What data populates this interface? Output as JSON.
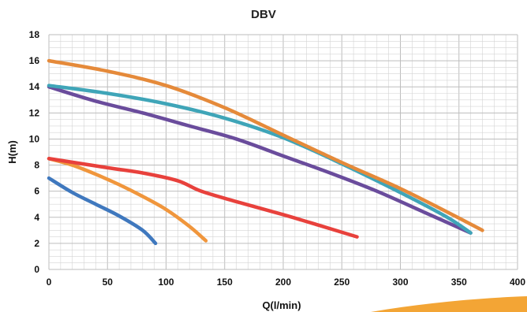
{
  "chart_data": {
    "type": "line",
    "title": "DBV",
    "xlabel": "Q(l/min)",
    "ylabel": "H(m)",
    "xlim": [
      0,
      400
    ],
    "ylim": [
      0,
      18
    ],
    "x_ticks": [
      0,
      50,
      100,
      150,
      200,
      250,
      300,
      350,
      400
    ],
    "y_ticks": [
      0,
      2,
      4,
      6,
      8,
      10,
      12,
      14,
      16,
      18
    ],
    "grid": true,
    "legend": "none",
    "series": [
      {
        "color": "#3f78be",
        "points": [
          [
            0,
            7
          ],
          [
            20,
            5.9
          ],
          [
            40,
            5.0
          ],
          [
            60,
            4.1
          ],
          [
            80,
            3.0
          ],
          [
            91,
            2.0
          ]
        ]
      },
      {
        "color": "#f0963c",
        "points": [
          [
            0,
            8.5
          ],
          [
            20,
            8.0
          ],
          [
            40,
            7.3
          ],
          [
            60,
            6.5
          ],
          [
            80,
            5.6
          ],
          [
            100,
            4.6
          ],
          [
            120,
            3.3
          ],
          [
            134,
            2.2
          ]
        ]
      },
      {
        "color": "#e8413c",
        "points": [
          [
            0,
            8.5
          ],
          [
            50,
            7.8
          ],
          [
            80,
            7.4
          ],
          [
            110,
            6.8
          ],
          [
            130,
            6.0
          ],
          [
            160,
            5.2
          ],
          [
            200,
            4.2
          ],
          [
            230,
            3.4
          ],
          [
            263,
            2.5
          ]
        ]
      },
      {
        "color": "#6a4c9c",
        "points": [
          [
            0,
            14
          ],
          [
            40,
            12.9
          ],
          [
            80,
            12.0
          ],
          [
            120,
            11.0
          ],
          [
            160,
            10.0
          ],
          [
            200,
            8.7
          ],
          [
            240,
            7.4
          ],
          [
            280,
            6.0
          ],
          [
            320,
            4.4
          ],
          [
            360,
            2.8
          ]
        ]
      },
      {
        "color": "#3fa5b8",
        "points": [
          [
            0,
            14.1
          ],
          [
            50,
            13.5
          ],
          [
            100,
            12.7
          ],
          [
            150,
            11.6
          ],
          [
            200,
            10.1
          ],
          [
            250,
            8.1
          ],
          [
            300,
            5.9
          ],
          [
            340,
            4.0
          ],
          [
            360,
            2.8
          ]
        ]
      },
      {
        "color": "#e58a3a",
        "points": [
          [
            0,
            16
          ],
          [
            50,
            15.2
          ],
          [
            100,
            14.1
          ],
          [
            150,
            12.4
          ],
          [
            200,
            10.3
          ],
          [
            250,
            8.2
          ],
          [
            300,
            6.2
          ],
          [
            340,
            4.4
          ],
          [
            370,
            3.0
          ]
        ]
      }
    ]
  },
  "decor": {
    "swoosh_color": "#f3a535"
  }
}
